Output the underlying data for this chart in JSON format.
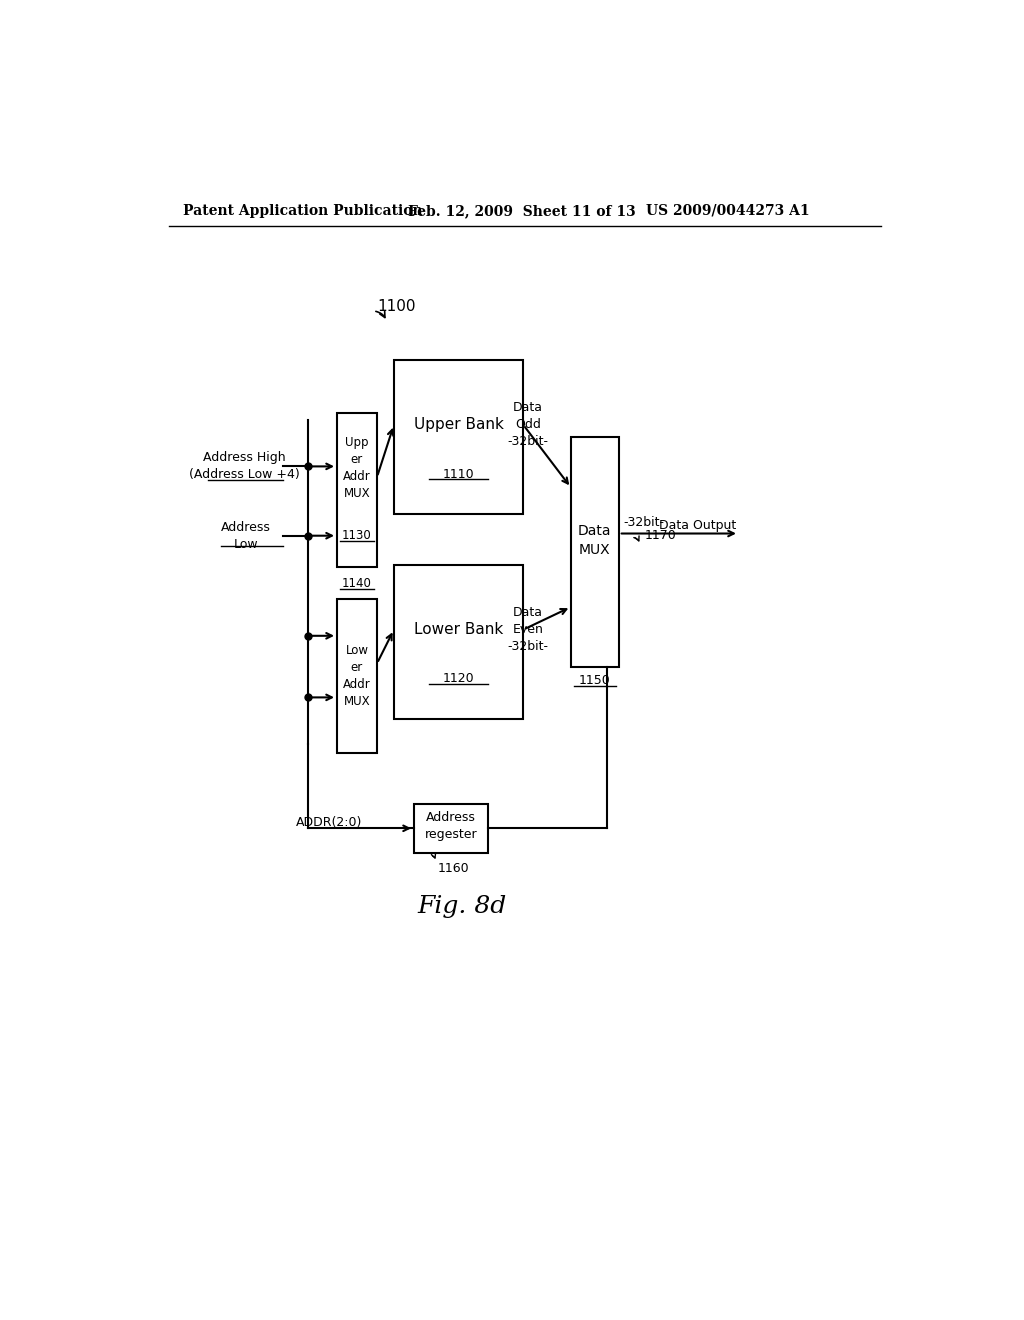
{
  "bg_color": "#ffffff",
  "header_left": "Patent Application Publication",
  "header_mid": "Feb. 12, 2009  Sheet 11 of 13",
  "header_right": "US 2009/0044273 A1",
  "fig_label": "Fig. 8d",
  "diagram_label": "1100",
  "upper_bank_label": "Upper Bank",
  "upper_bank_sublabel": "1110",
  "lower_bank_label": "Lower Bank",
  "lower_bank_sublabel": "1120",
  "upper_mux_label": "Upp\ner\nAddr\nMUX",
  "upper_mux_sublabel": "1130",
  "lower_mux_label": "Low\ner\nAddr\nMUX",
  "lower_mux_sublabel": "1140",
  "data_mux_label": "Data\nMUX",
  "data_mux_sublabel": "1150",
  "addr_reg_label": "Address\nregester",
  "addr_reg_sublabel": "1160",
  "data_output_ref": "1170",
  "data_output_text": "Data Output",
  "addr_high_label": "Address High\n(Address Low +4)",
  "addr_low_label": "Address\nLow",
  "data_odd_label": "Data\nOdd\n-32bit-",
  "data_even_label": "Data\nEven\n-32bit-",
  "data_out_bus_label": "-32bit-",
  "addr_input_label": "ADDR(2:0)"
}
